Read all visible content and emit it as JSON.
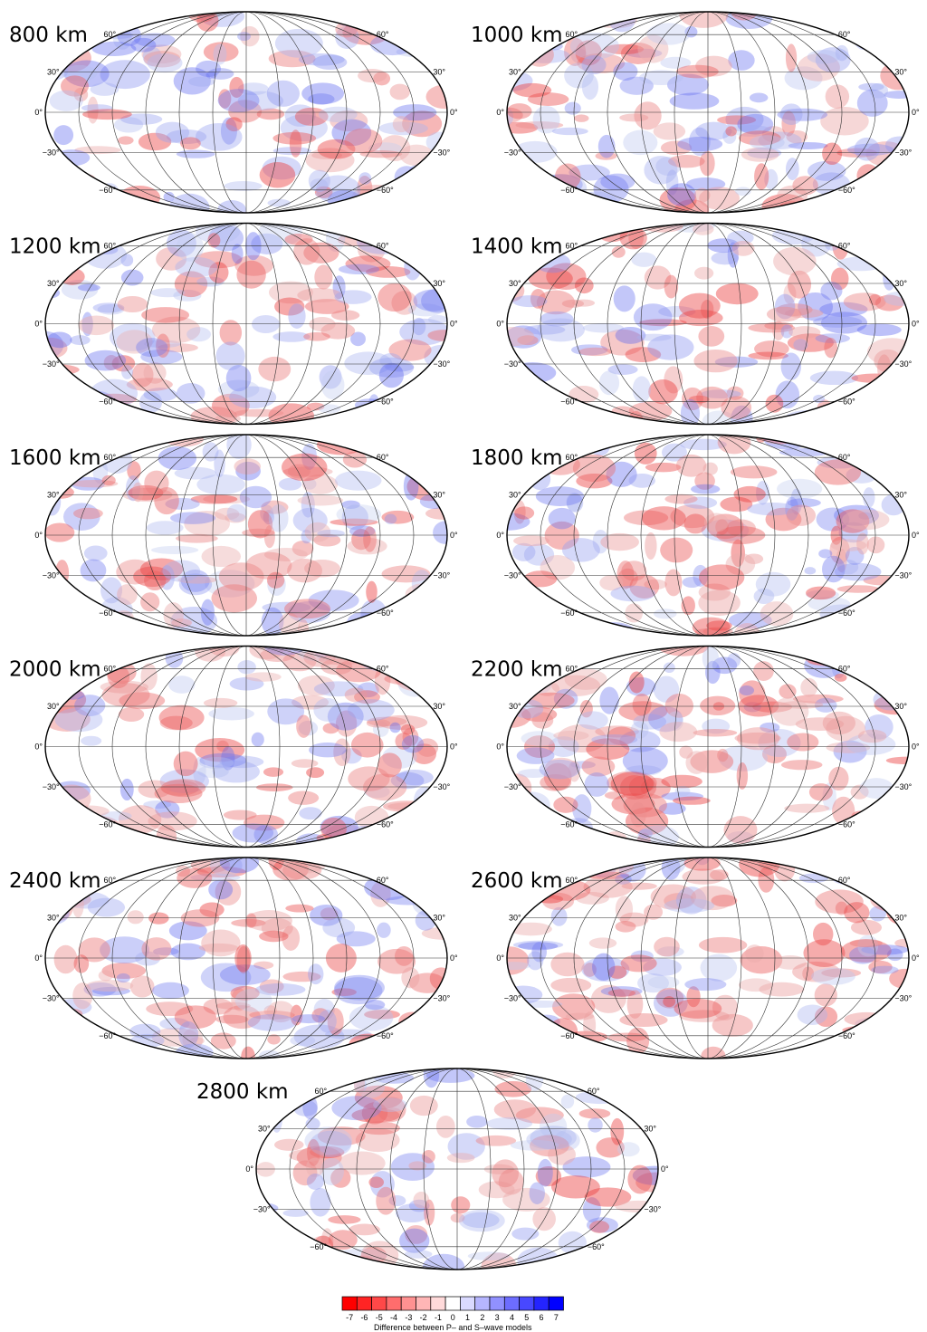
{
  "panels": [
    {
      "label": "800 km"
    },
    {
      "label": "1000 km"
    },
    {
      "label": "1200 km"
    },
    {
      "label": "1400 km"
    },
    {
      "label": "1600 km"
    },
    {
      "label": "1800 km"
    },
    {
      "label": "2000 km"
    },
    {
      "label": "2200 km"
    },
    {
      "label": "2400 km"
    },
    {
      "label": "2600 km"
    },
    {
      "label": "2800 km"
    }
  ],
  "lat_labels": [
    "60°",
    "30°",
    "0°",
    "−30°",
    "−60°"
  ],
  "colorbar": {
    "ticks": [
      -7,
      -6,
      -5,
      -4,
      -3,
      -2,
      -1,
      0,
      1,
      2,
      3,
      4,
      5,
      6,
      7
    ],
    "label": "Difference between P– and S–wave models"
  }
}
